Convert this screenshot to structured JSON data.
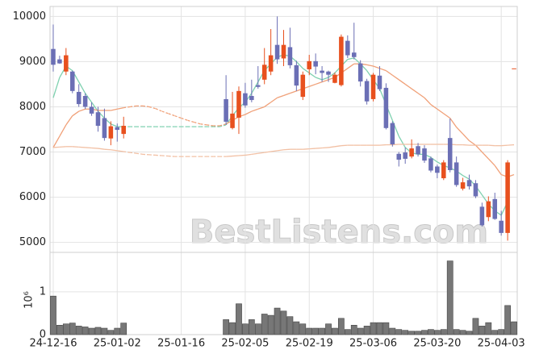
{
  "chart_data": [
    {
      "type": "candlestick",
      "watermark": "BestListens.com",
      "categories": [
        "24-12-16",
        null,
        null,
        null,
        null,
        null,
        null,
        null,
        null,
        null,
        "25-01-02",
        null,
        null,
        null,
        null,
        null,
        null,
        null,
        null,
        null,
        "25-01-16",
        null,
        null,
        null,
        null,
        null,
        null,
        null,
        null,
        null,
        "25-02-05",
        null,
        null,
        null,
        null,
        null,
        null,
        null,
        null,
        null,
        "25-02-19",
        null,
        null,
        null,
        null,
        null,
        null,
        null,
        null,
        null,
        "25-03-06",
        null,
        null,
        null,
        null,
        null,
        null,
        null,
        null,
        null,
        "25-03-20",
        null,
        null,
        null,
        null,
        null,
        null,
        null,
        null,
        null,
        "25-04-03",
        null,
        null
      ],
      "open": [
        9280,
        9050,
        8780,
        8780,
        8330,
        8240,
        8000,
        7880,
        7750,
        7300,
        7550,
        7400,
        null,
        null,
        null,
        null,
        null,
        null,
        null,
        null,
        null,
        null,
        null,
        null,
        null,
        null,
        null,
        8170,
        7530,
        7760,
        8300,
        8240,
        8480,
        8600,
        8780,
        9370,
        9070,
        9320,
        8920,
        8220,
        8830,
        9010,
        8800,
        8780,
        8530,
        8480,
        9460,
        9200,
        8960,
        8570,
        8170,
        8690,
        8420,
        7640,
        6960,
        6990,
        6900,
        7130,
        7080,
        6860,
        6680,
        6420,
        7310,
        6770,
        6190,
        6380,
        6310,
        5790,
        5560,
        5960,
        5480,
        5210,
        8850
      ],
      "high": [
        9820,
        9130,
        9300,
        8800,
        8500,
        8300,
        8100,
        8000,
        7960,
        7680,
        7630,
        7780,
        null,
        null,
        null,
        null,
        null,
        null,
        null,
        null,
        null,
        null,
        null,
        null,
        null,
        null,
        null,
        8700,
        8330,
        8450,
        8530,
        8600,
        8900,
        9300,
        9720,
        10000,
        9700,
        9750,
        9020,
        8780,
        9150,
        9180,
        8900,
        8800,
        8760,
        9600,
        9580,
        9860,
        9030,
        8620,
        8750,
        8900,
        8520,
        7680,
        7000,
        7100,
        7280,
        7200,
        7150,
        6900,
        6720,
        6820,
        7740,
        6900,
        6430,
        6500,
        6380,
        5880,
        6020,
        6100,
        5700,
        6820,
        8850
      ],
      "low": [
        8780,
        8950,
        8700,
        8300,
        8000,
        7950,
        7800,
        7450,
        7250,
        7150,
        7230,
        7300,
        null,
        null,
        null,
        null,
        null,
        null,
        null,
        null,
        null,
        null,
        null,
        null,
        null,
        null,
        null,
        7600,
        7500,
        7400,
        7980,
        8100,
        8400,
        8500,
        8700,
        8950,
        8900,
        8850,
        8350,
        8150,
        8700,
        8720,
        8550,
        8550,
        8520,
        8450,
        9080,
        9050,
        8450,
        8050,
        8120,
        8350,
        7500,
        7120,
        6680,
        6740,
        6860,
        6900,
        6760,
        6550,
        6420,
        6380,
        6550,
        6230,
        6150,
        6170,
        5980,
        5350,
        5470,
        5500,
        5150,
        5040,
        8850
      ],
      "close": [
        8930,
        8960,
        9140,
        8350,
        8060,
        8000,
        7850,
        7580,
        7310,
        7570,
        7490,
        7580,
        null,
        null,
        null,
        null,
        null,
        null,
        null,
        null,
        null,
        null,
        null,
        null,
        null,
        null,
        null,
        7670,
        7850,
        8350,
        8030,
        8150,
        8440,
        8930,
        9140,
        9050,
        9370,
        8920,
        8470,
        8710,
        9010,
        8890,
        8750,
        8710,
        8710,
        9550,
        9140,
        9100,
        8560,
        8120,
        8710,
        8390,
        7530,
        7170,
        6830,
        6850,
        7080,
        6950,
        6810,
        6590,
        6540,
        6770,
        6600,
        6270,
        6330,
        6240,
        6020,
        5380,
        5910,
        5520,
        5210,
        6770,
        8850
      ],
      "up_color": "#e8501e",
      "down_color": "#6b6fb5",
      "series": [
        {
          "color": "#7fd1b0",
          "values": [
            8200,
            8650,
            8900,
            8800,
            8550,
            8300,
            8100,
            7900,
            7750,
            7620,
            7560,
            7560,
            7560,
            7560,
            7560,
            7560,
            7560,
            7560,
            7560,
            7560,
            7560,
            7560,
            7560,
            7560,
            7560,
            7560,
            7560,
            7600,
            7800,
            7980,
            8100,
            8300,
            8550,
            8800,
            8950,
            9100,
            9150,
            9120,
            9000,
            8850,
            8750,
            8650,
            8600,
            8650,
            8750,
            8900,
            9050,
            9080,
            8950,
            8800,
            8600,
            8400,
            8050,
            7700,
            7350,
            7100,
            6980,
            6950,
            6950,
            6880,
            6780,
            6700,
            6650,
            6580,
            6480,
            6400,
            6250,
            6050,
            5850,
            5700,
            5600,
            5900,
            null
          ]
        },
        {
          "color": "#f0a078",
          "values": [
            7100,
            7350,
            7600,
            7800,
            7900,
            7950,
            7950,
            7920,
            7920,
            7920,
            7950,
            7980,
            8000,
            8020,
            8020,
            8000,
            7960,
            7900,
            7850,
            7800,
            7750,
            7700,
            7660,
            7620,
            7600,
            7580,
            7580,
            7620,
            7700,
            7780,
            7830,
            7900,
            7950,
            8000,
            8100,
            8200,
            8250,
            8300,
            8350,
            8400,
            8450,
            8500,
            8550,
            8600,
            8650,
            8750,
            8850,
            8950,
            8950,
            8930,
            8900,
            8850,
            8800,
            8700,
            8600,
            8500,
            8400,
            8300,
            8200,
            8050,
            7950,
            7850,
            7750,
            7550,
            7400,
            7250,
            7150,
            7000,
            6850,
            6700,
            6500,
            6450,
            6500
          ]
        },
        {
          "color": "#f2c0a4",
          "values": [
            7100,
            7110,
            7120,
            7120,
            7110,
            7100,
            7090,
            7080,
            7060,
            7050,
            7030,
            7010,
            6990,
            6970,
            6950,
            6940,
            6930,
            6920,
            6910,
            6900,
            6900,
            6900,
            6900,
            6900,
            6900,
            6900,
            6900,
            6900,
            6910,
            6920,
            6930,
            6950,
            6970,
            6990,
            7010,
            7030,
            7050,
            7060,
            7060,
            7060,
            7070,
            7080,
            7090,
            7100,
            7120,
            7140,
            7150,
            7150,
            7150,
            7150,
            7150,
            7150,
            7160,
            7160,
            7170,
            7170,
            7170,
            7170,
            7170,
            7170,
            7170,
            7170,
            7170,
            7160,
            7160,
            7150,
            7150,
            7150,
            7150,
            7140,
            7140,
            7150,
            7160
          ]
        }
      ],
      "ylim": [
        4780,
        10220
      ],
      "yticks": [
        5000,
        6000,
        7000,
        8000,
        9000,
        10000
      ],
      "grid": true
    },
    {
      "type": "bar",
      "values": [
        0.9,
        0.22,
        0.25,
        0.27,
        0.2,
        0.18,
        0.15,
        0.17,
        0.15,
        0.1,
        0.15,
        0.27,
        null,
        null,
        null,
        null,
        null,
        null,
        null,
        null,
        null,
        null,
        null,
        null,
        null,
        null,
        null,
        0.35,
        0.28,
        0.72,
        0.25,
        0.35,
        0.25,
        0.48,
        0.45,
        0.62,
        0.55,
        0.42,
        0.3,
        0.25,
        0.15,
        0.15,
        0.15,
        0.25,
        0.15,
        0.38,
        0.12,
        0.22,
        0.15,
        0.2,
        0.28,
        0.28,
        0.28,
        0.15,
        0.12,
        0.1,
        0.08,
        0.08,
        0.1,
        0.12,
        0.1,
        0.12,
        1.72,
        0.12,
        0.1,
        0.08,
        0.38,
        0.2,
        0.28,
        0.1,
        0.12,
        0.68,
        0.3
      ],
      "color": "#777777",
      "offset_label": "10⁶",
      "ylim": [
        0,
        1.92
      ],
      "yticks": [
        0,
        1
      ],
      "grid": true
    }
  ]
}
